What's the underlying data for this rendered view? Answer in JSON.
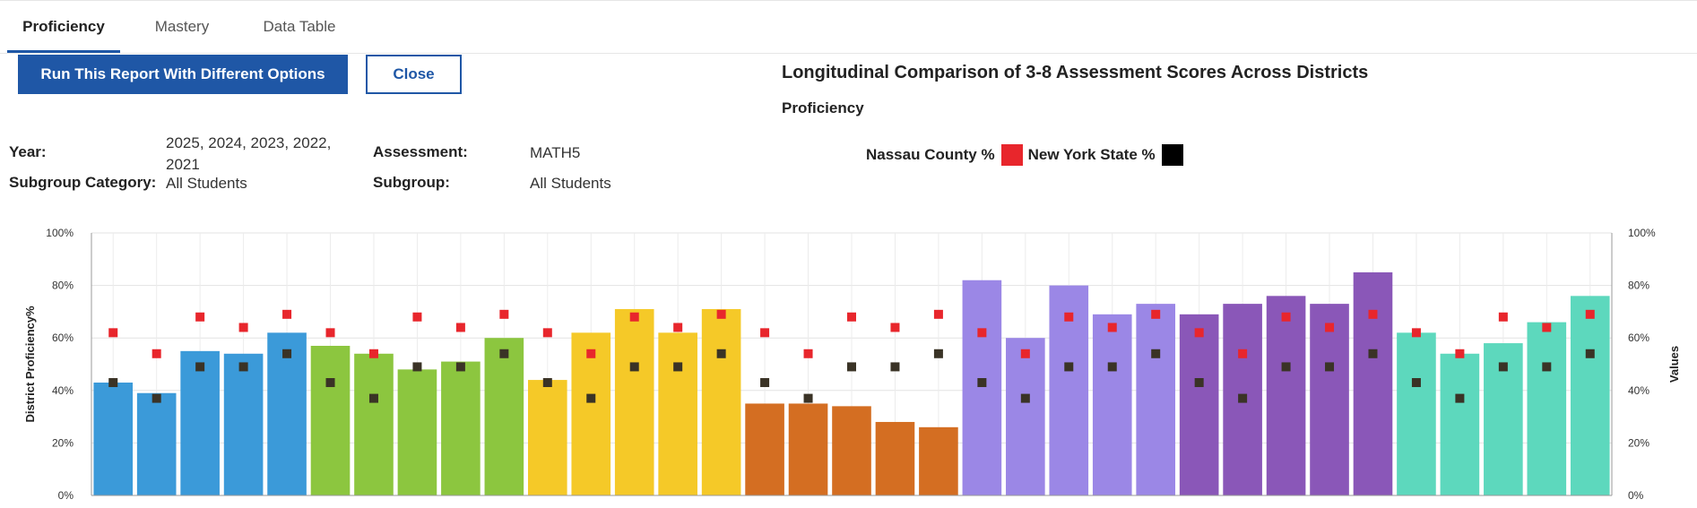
{
  "tabs": [
    {
      "label": "Proficiency",
      "active": true
    },
    {
      "label": "Mastery",
      "active": false
    },
    {
      "label": "Data Table",
      "active": false
    }
  ],
  "actions": {
    "run_label": "Run This Report With Different Options",
    "close_label": "Close"
  },
  "report": {
    "title": "Longitudinal Comparison of 3-8 Assessment Scores Across Districts",
    "subtitle": "Proficiency"
  },
  "options": {
    "year_label": "Year:",
    "year_value": "2025, 2024, 2023, 2022, 2021",
    "subgroup_category_label": "Subgroup Category:",
    "subgroup_category_value": "All Students",
    "assessment_label": "Assessment:",
    "assessment_value": "MATH5",
    "subgroup_label": "Subgroup:",
    "subgroup_value": "All Students"
  },
  "legend": {
    "county_label": "Nassau County %",
    "county_color": "#e8262c",
    "state_label": "New York State %",
    "state_color": "#000000"
  },
  "chart_data": {
    "type": "bar",
    "ylabel": "District Proficiency%",
    "y2label": "Values",
    "ylim": [
      0,
      100
    ],
    "yticks": [
      "0%",
      "20%",
      "40%",
      "60%",
      "80%",
      "100%"
    ],
    "grid": true,
    "bars": [
      {
        "value": 43,
        "color": "#3b9ad9"
      },
      {
        "value": 39,
        "color": "#3b9ad9"
      },
      {
        "value": 55,
        "color": "#3b9ad9"
      },
      {
        "value": 54,
        "color": "#3b9ad9"
      },
      {
        "value": 62,
        "color": "#3b9ad9"
      },
      {
        "value": 57,
        "color": "#8cc63f"
      },
      {
        "value": 54,
        "color": "#8cc63f"
      },
      {
        "value": 48,
        "color": "#8cc63f"
      },
      {
        "value": 51,
        "color": "#8cc63f"
      },
      {
        "value": 60,
        "color": "#8cc63f"
      },
      {
        "value": 44,
        "color": "#f5c928"
      },
      {
        "value": 62,
        "color": "#f5c928"
      },
      {
        "value": 71,
        "color": "#f5c928"
      },
      {
        "value": 62,
        "color": "#f5c928"
      },
      {
        "value": 71,
        "color": "#f5c928"
      },
      {
        "value": 35,
        "color": "#d46e22"
      },
      {
        "value": 35,
        "color": "#d46e22"
      },
      {
        "value": 34,
        "color": "#d46e22"
      },
      {
        "value": 28,
        "color": "#d46e22"
      },
      {
        "value": 26,
        "color": "#d46e22"
      },
      {
        "value": 82,
        "color": "#9b87e6"
      },
      {
        "value": 60,
        "color": "#9b87e6"
      },
      {
        "value": 80,
        "color": "#9b87e6"
      },
      {
        "value": 69,
        "color": "#9b87e6"
      },
      {
        "value": 73,
        "color": "#9b87e6"
      },
      {
        "value": 69,
        "color": "#8a57b8"
      },
      {
        "value": 73,
        "color": "#8a57b8"
      },
      {
        "value": 76,
        "color": "#8a57b8"
      },
      {
        "value": 73,
        "color": "#8a57b8"
      },
      {
        "value": 85,
        "color": "#8a57b8"
      },
      {
        "value": 62,
        "color": "#5dd8bd"
      },
      {
        "value": 54,
        "color": "#5dd8bd"
      },
      {
        "value": 58,
        "color": "#5dd8bd"
      },
      {
        "value": 66,
        "color": "#5dd8bd"
      },
      {
        "value": 76,
        "color": "#5dd8bd"
      }
    ],
    "series": [
      {
        "key": "county",
        "values": [
          62,
          54,
          68,
          64,
          69,
          62,
          54,
          68,
          64,
          69,
          62,
          54,
          68,
          64,
          69,
          62,
          54,
          68,
          64,
          69,
          62,
          54,
          68,
          64,
          69,
          62,
          54,
          68,
          64,
          69,
          62,
          54,
          68,
          64,
          69
        ]
      },
      {
        "key": "state",
        "values": [
          43,
          37,
          49,
          49,
          54,
          43,
          37,
          49,
          49,
          54,
          43,
          37,
          49,
          49,
          54,
          43,
          37,
          49,
          49,
          54,
          43,
          37,
          49,
          49,
          54,
          43,
          37,
          49,
          49,
          54,
          43,
          37,
          49,
          49,
          54
        ]
      }
    ]
  }
}
